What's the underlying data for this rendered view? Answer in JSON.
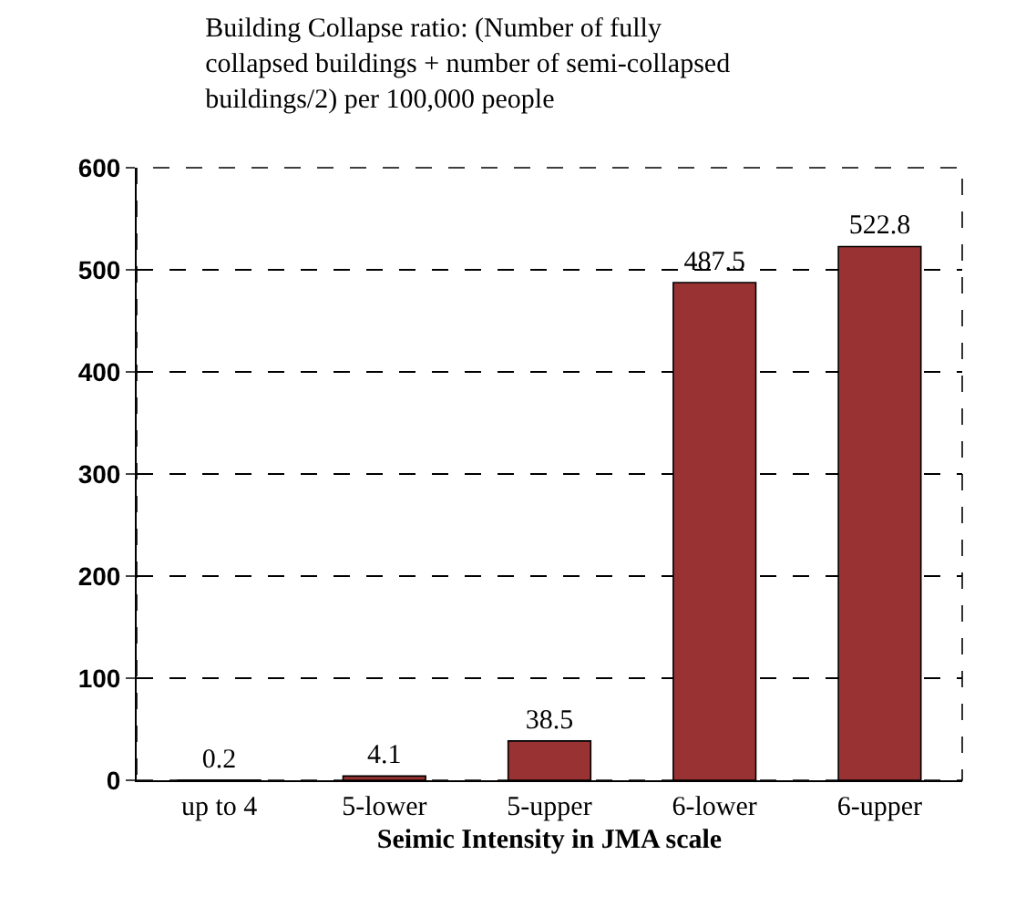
{
  "chart_data": {
    "type": "bar",
    "title": "Building Collapse ratio: (Number of fully\ncollapsed buildings + number of semi-collapsed\nbuildings/2) per 100,000 people",
    "xlabel": "Seimic Intensity in JMA scale",
    "categories": [
      "up to 4",
      "5-lower",
      "5-upper",
      "6-lower",
      "6-upper"
    ],
    "values": [
      0.2,
      4.1,
      38.5,
      487.5,
      522.8
    ],
    "color": "#993333",
    "ylim": [
      0,
      600
    ],
    "yticks": [
      0,
      100,
      200,
      300,
      400,
      500,
      600
    ],
    "grid": "y",
    "data_labels": true,
    "legend": false
  }
}
